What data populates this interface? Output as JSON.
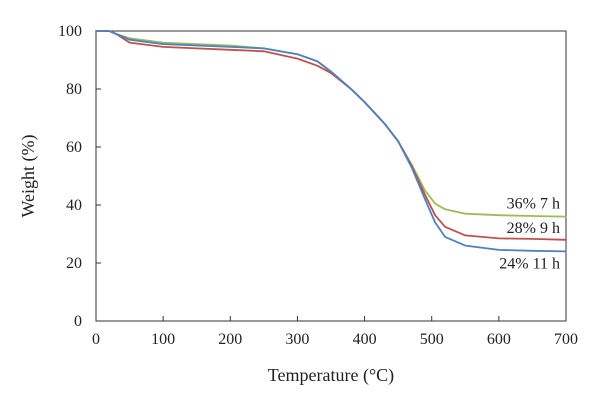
{
  "chart_data": {
    "type": "line",
    "title": "",
    "xlabel": "Temperature (°C)",
    "ylabel": "Weight (%)",
    "xlim": [
      0,
      700
    ],
    "ylim": [
      0,
      100
    ],
    "xticks": [
      "0",
      "100",
      "200",
      "300",
      "400",
      "500",
      "600",
      "700"
    ],
    "yticks": [
      "0",
      "20",
      "40",
      "60",
      "80",
      "100"
    ],
    "grid": false,
    "legend": "inline labels right",
    "series": [
      {
        "name": "36% 7 h",
        "label": "36% 7 h",
        "color": "#9BBB59",
        "x": [
          0,
          20,
          30,
          50,
          100,
          150,
          200,
          250,
          300,
          330,
          350,
          380,
          400,
          430,
          450,
          470,
          490,
          505,
          520,
          550,
          600,
          650,
          700
        ],
        "y": [
          100,
          100,
          99,
          97.5,
          96,
          95.5,
          95,
          94,
          92,
          89.5,
          86,
          80,
          75.5,
          68,
          62,
          54,
          45,
          40.5,
          38.5,
          37,
          36.5,
          36.2,
          36
        ]
      },
      {
        "name": "28% 9 h",
        "label": "28% 9 h",
        "color": "#C0504D",
        "x": [
          0,
          20,
          30,
          50,
          100,
          150,
          200,
          250,
          300,
          330,
          350,
          380,
          400,
          430,
          450,
          470,
          490,
          505,
          520,
          550,
          600,
          650,
          700
        ],
        "y": [
          100,
          100,
          99,
          96,
          94.5,
          94,
          93.5,
          93,
          90.5,
          88,
          85.5,
          80,
          75.5,
          68,
          62,
          53.5,
          43.5,
          36.5,
          32.5,
          29.5,
          28.5,
          28.3,
          28
        ]
      },
      {
        "name": "24% 11 h",
        "label": "24% 11 h",
        "color": "#4F81BD",
        "x": [
          0,
          20,
          30,
          50,
          100,
          150,
          200,
          250,
          300,
          330,
          350,
          380,
          400,
          430,
          450,
          470,
          490,
          505,
          520,
          550,
          600,
          650,
          700
        ],
        "y": [
          100,
          100,
          99,
          97,
          95.5,
          95,
          94.5,
          94,
          92,
          89.5,
          86,
          80,
          75.5,
          68,
          62,
          53,
          42,
          34,
          29,
          26,
          24.5,
          24.2,
          24
        ]
      }
    ]
  }
}
